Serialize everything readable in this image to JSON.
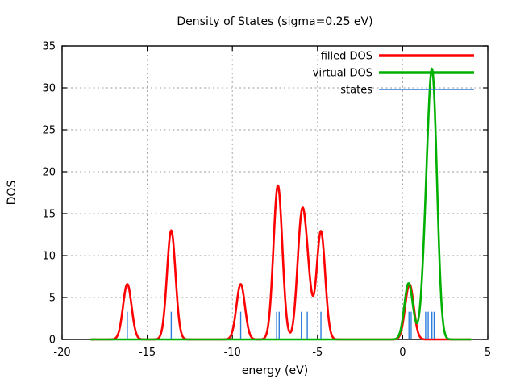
{
  "title": "Density of States (sigma=0.25 eV)",
  "axes": {
    "xlabel": "energy (eV)",
    "ylabel": "DOS"
  },
  "legend": {
    "position": "inside top-right",
    "items": [
      {
        "label": "filled DOS",
        "series": "filled_dos"
      },
      {
        "label": "virtual DOS",
        "series": "virtual_dos"
      },
      {
        "label": "states",
        "series": "states"
      }
    ]
  },
  "colors": {
    "filled_dos": "#ff0000",
    "virtual_dos": "#00b000",
    "states": "#2b7ddc",
    "grid": "#9b9b9b",
    "axis": "#000000",
    "background": "#ffffff"
  },
  "chart_data": {
    "type": "line",
    "title": "Density of States (sigma=0.25 eV)",
    "xlabel": "energy (eV)",
    "ylabel": "DOS",
    "xlim": [
      -20,
      5
    ],
    "ylim": [
      0,
      35
    ],
    "xticks": [
      -20,
      -15,
      -10,
      -5,
      0,
      5
    ],
    "yticks": [
      0,
      5,
      10,
      15,
      20,
      25,
      30,
      35
    ],
    "grid": true,
    "legend_position": "inside top-right",
    "gaussian_sigma_ev": 0.25,
    "curve_x_range": [
      -18.3,
      4.0
    ],
    "series": [
      {
        "name": "filled DOS",
        "type": "gaussian_sum",
        "color_key": "filled_dos",
        "peaks": [
          {
            "center": -16.17,
            "height": 6.6
          },
          {
            "center": -13.59,
            "height": 13.0
          },
          {
            "center": -9.51,
            "height": 6.6
          },
          {
            "center": -7.4,
            "height": 9.6
          },
          {
            "center": -7.25,
            "height": 9.6
          },
          {
            "center": -5.95,
            "height": 12.8
          },
          {
            "center": -5.6,
            "height": 6.4
          },
          {
            "center": -4.8,
            "height": 12.9
          },
          {
            "center": 0.4,
            "height": 6.6
          }
        ]
      },
      {
        "name": "virtual DOS",
        "type": "gaussian_sum",
        "color_key": "virtual_dos",
        "peaks": [
          {
            "center": 0.35,
            "height": 6.7
          },
          {
            "center": 1.35,
            "height": 6.0
          },
          {
            "center": 1.5,
            "height": 6.0
          },
          {
            "center": 1.72,
            "height": 14.0
          },
          {
            "center": 1.85,
            "height": 14.0
          }
        ]
      },
      {
        "name": "states",
        "type": "impulse",
        "color_key": "states",
        "impulse_height": 3.3,
        "positions": [
          -16.17,
          -13.59,
          -9.51,
          -7.4,
          -7.25,
          -5.95,
          -5.6,
          -4.8,
          0.37,
          0.5,
          1.35,
          1.5,
          1.72,
          1.85
        ]
      }
    ]
  }
}
